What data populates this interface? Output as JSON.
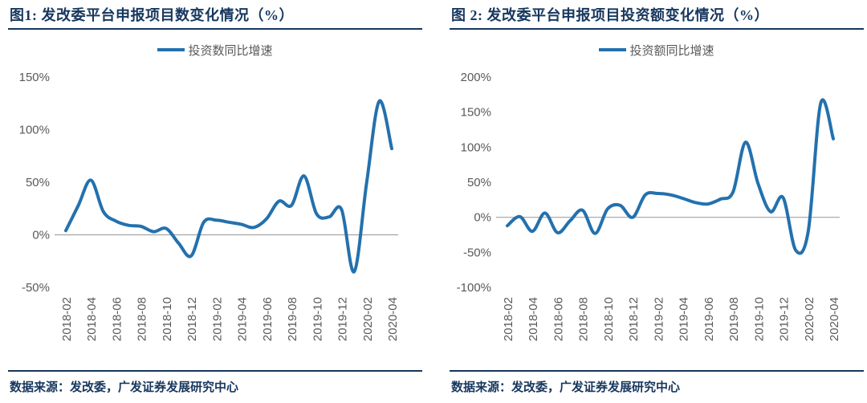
{
  "colors": {
    "line": "#2371ae",
    "title_navy": "#17375e",
    "axis_text": "#595959",
    "zero_line": "#a3a3a3",
    "background": "#ffffff"
  },
  "source_note": "数据来源：发改委，广发证券发展研究中心",
  "chart_data": [
    {
      "type": "line",
      "title": "图1: 发改委平台申报项目数变化情况（%）",
      "legend": [
        "投资数同比增速"
      ],
      "legend_position": "top",
      "grid": false,
      "zero_line": true,
      "ylim": [
        -50,
        150
      ],
      "yticks": [
        150,
        100,
        50,
        0,
        -50
      ],
      "ytick_suffix": "%",
      "x_tick_every": 2,
      "x": [
        "2018-02",
        "2018-03",
        "2018-04",
        "2018-05",
        "2018-06",
        "2018-07",
        "2018-08",
        "2018-09",
        "2018-10",
        "2018-11",
        "2018-12",
        "2019-01",
        "2019-02",
        "2019-03",
        "2019-04",
        "2019-05",
        "2019-06",
        "2019-07",
        "2019-08",
        "2019-09",
        "2019-10",
        "2019-11",
        "2019-12",
        "2020-01",
        "2020-02",
        "2020-03",
        "2020-04"
      ],
      "series": [
        {
          "name": "投资数同比增速",
          "values": [
            4,
            28,
            52,
            22,
            13,
            9,
            8,
            3,
            6,
            -8,
            -20,
            12,
            14,
            12,
            10,
            7,
            15,
            32,
            28,
            56,
            20,
            17,
            24,
            -35,
            50,
            127,
            82
          ]
        }
      ]
    },
    {
      "type": "line",
      "title": "图 2: 发改委平台申报项目投资额变化情况（%）",
      "legend": [
        "投资额同比增速"
      ],
      "legend_position": "top",
      "grid": false,
      "zero_line": true,
      "ylim": [
        -100,
        200
      ],
      "yticks": [
        200,
        150,
        100,
        50,
        0,
        -50,
        -100
      ],
      "ytick_suffix": "%",
      "x_tick_every": 2,
      "x": [
        "2018-02",
        "2018-03",
        "2018-04",
        "2018-05",
        "2018-06",
        "2018-07",
        "2018-08",
        "2018-09",
        "2018-10",
        "2018-11",
        "2018-12",
        "2019-01",
        "2019-02",
        "2019-03",
        "2019-04",
        "2019-05",
        "2019-06",
        "2019-07",
        "2019-08",
        "2019-09",
        "2019-10",
        "2019-11",
        "2019-12",
        "2020-01",
        "2020-02",
        "2020-03",
        "2020-04"
      ],
      "series": [
        {
          "name": "投资额同比增速",
          "values": [
            -12,
            1,
            -20,
            6,
            -22,
            -5,
            10,
            -23,
            12,
            17,
            0,
            32,
            34,
            32,
            27,
            21,
            19,
            26,
            36,
            107,
            48,
            8,
            28,
            -47,
            -20,
            163,
            112
          ]
        }
      ]
    }
  ]
}
